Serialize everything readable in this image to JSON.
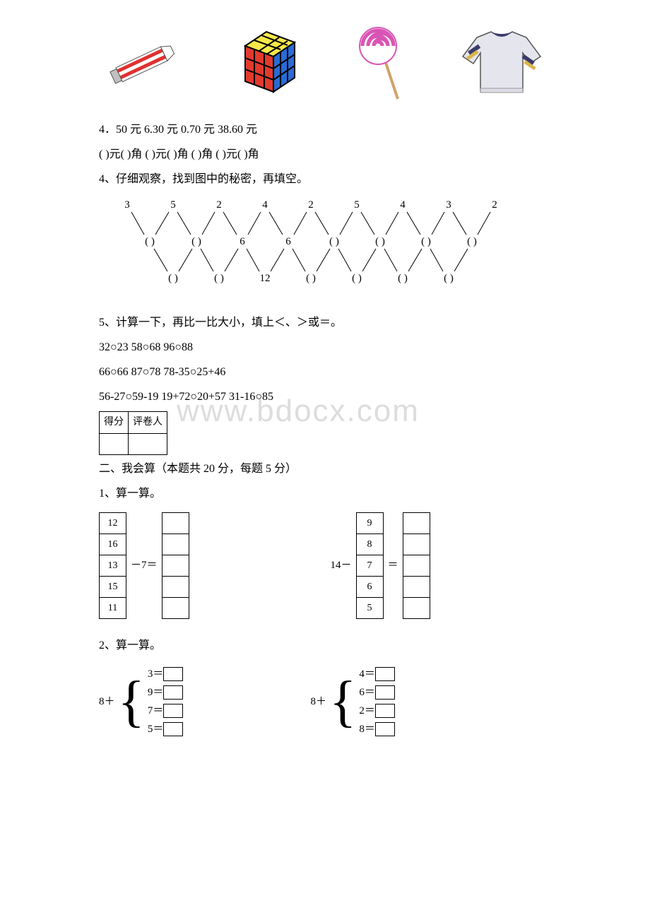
{
  "images_row": {
    "item1_name": "toothpaste-icon",
    "item2_name": "rubiks-cube-icon",
    "item3_name": "lollipop-icon",
    "item4_name": "sweater-icon"
  },
  "q3": {
    "line1": "4．50 元 6.30 元 0.70 元 38.60 元",
    "line2": " ( )元( )角 ( )元( )角 ( )角 ( )元( )角"
  },
  "q4": {
    "title": "4、仔细观察，找到图中的秘密，再填空。",
    "top_row": [
      "3",
      "5",
      "2",
      "4",
      "2",
      "5",
      "4",
      "3",
      "2"
    ],
    "mid_row": [
      "( )",
      "( )",
      "6",
      "6",
      "( )",
      "( )",
      "( )",
      "( )"
    ],
    "bot_row": [
      "( )",
      "( )",
      "12",
      "( )",
      "( )",
      "( )",
      "( )"
    ]
  },
  "q5": {
    "title": "5、计算一下，再比一比大小，填上＜、＞或＝。",
    "line1": "32○23 58○68 96○88",
    "line2": "66○66 87○78 78-35○25+46",
    "line3": "56-27○59-19 19+72○20+57 31-16○85",
    "score_header1": "得分",
    "score_header2": "评卷人"
  },
  "watermark_text": "www.bdocx.com",
  "section2_title": " 二、我会算（本题共 20 分，每题 5 分）",
  "q2_1": {
    "title": "1、算一算。",
    "left_values": [
      "12",
      "16",
      "13",
      "15",
      "11"
    ],
    "left_op": "－7＝",
    "right_prefix": "14－",
    "right_values": [
      "9",
      "8",
      "7",
      "6",
      "5"
    ],
    "right_op": "＝"
  },
  "q2_2": {
    "title": "2、算一算。",
    "left_prefix": "8＋",
    "left_ops": [
      "3＝",
      "9＝",
      "7＝",
      "5＝"
    ],
    "right_prefix": "8＋",
    "right_ops": [
      "4＝",
      "6＝",
      "2＝",
      "8＝"
    ]
  },
  "style": {
    "toothpaste_colors": {
      "body": "#ffffff",
      "stripe": "#e03030",
      "cap": "#c0c0c0"
    },
    "cube_colors": {
      "top": "#f6e84a",
      "front": "#e23a2d",
      "side": "#2a6bd6",
      "line": "#000"
    },
    "lollipop_colors": {
      "swirl1": "#d955b5",
      "swirl2": "#ffffff",
      "stick": "#cfa368"
    },
    "sweater_colors": {
      "body": "#e5e5ee",
      "stripe1": "#3b3b6b",
      "stripe2": "#d9b64a"
    },
    "text_color": "#000000",
    "bg_color": "#ffffff",
    "watermark_color": "#dddddd",
    "border_color": "#000000"
  }
}
